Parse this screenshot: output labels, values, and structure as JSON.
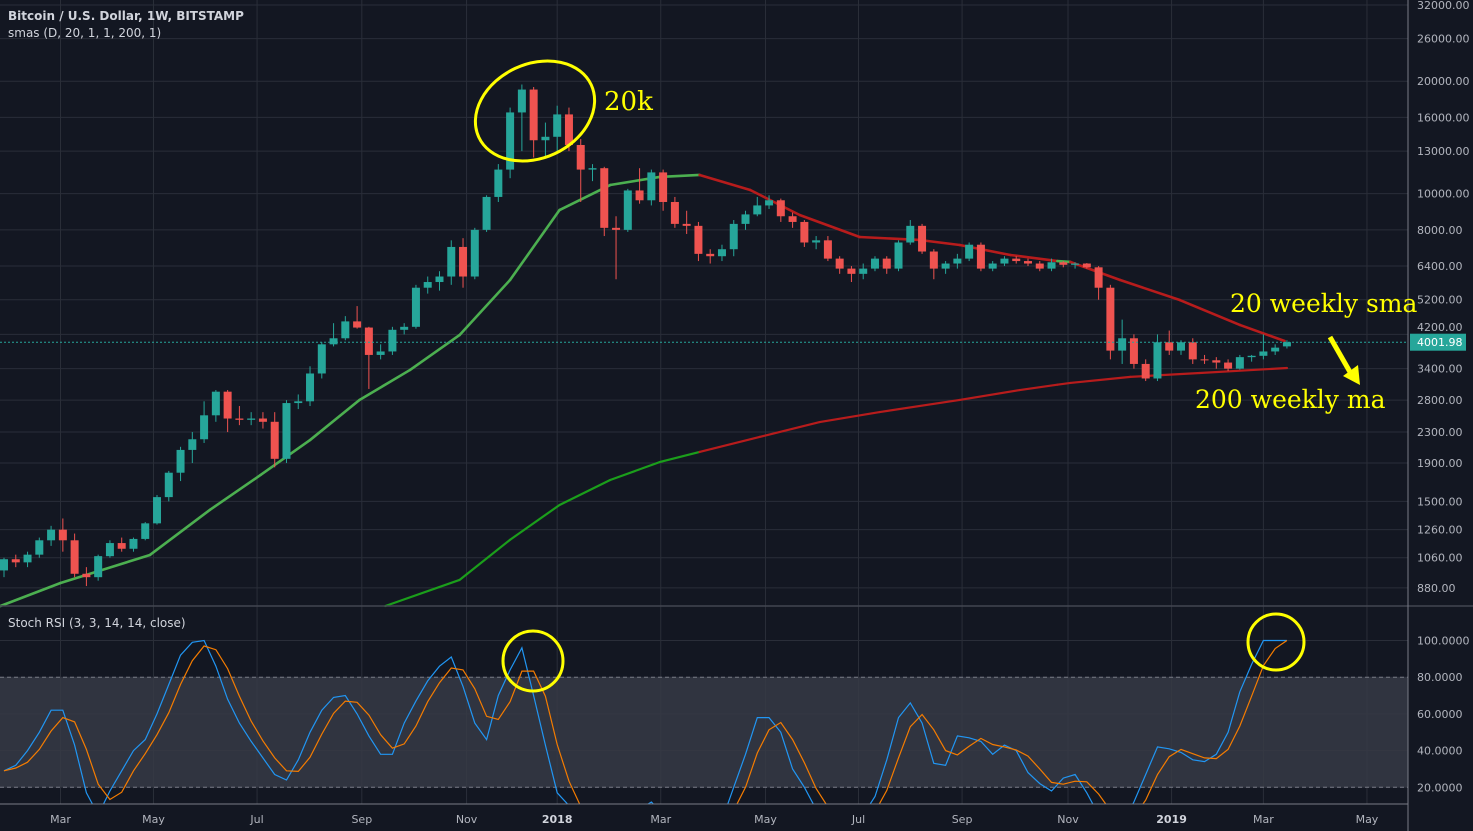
{
  "header": {
    "title": "Bitcoin / U.S. Dollar, 1W, BITSTAMP",
    "study": "smas (D, 20, 1, 1, 200, 1)",
    "oscillator": "Stoch RSI (3, 3, 14, 14, close)"
  },
  "colors": {
    "background": "#131722",
    "up": "#26a69a",
    "down": "#ef5350",
    "ma_up": "#4caf50",
    "ma_down": "#b71c1c",
    "ma200_up": "#1b9e1b",
    "stoch_k": "#2196f3",
    "stoch_d": "#f57c00",
    "annotation": "#ffff00",
    "last_price_tag": "#26a69a"
  },
  "price_axis": {
    "labels": [
      "32000.00",
      "26000.00",
      "20000.00",
      "16000.00",
      "13000.00",
      "10000.00",
      "8000.00",
      "6400.00",
      "5200.00",
      "4200.00",
      "3400.00",
      "2800.00",
      "2300.00",
      "1900.00",
      "1500.00",
      "1260.00",
      "1060.00",
      "880.00"
    ],
    "last_price": "4001.98"
  },
  "stoch_axis": {
    "labels": [
      "100.0000",
      "80.0000",
      "60.0000",
      "40.0000",
      "20.0000"
    ]
  },
  "time_axis": {
    "labels": [
      {
        "text": "Mar",
        "week": 4.8,
        "bold": false
      },
      {
        "text": "May",
        "week": 12.7,
        "bold": false
      },
      {
        "text": "Jul",
        "week": 21.5,
        "bold": false
      },
      {
        "text": "Sep",
        "week": 30.4,
        "bold": false
      },
      {
        "text": "Nov",
        "week": 39.3,
        "bold": false
      },
      {
        "text": "2018",
        "week": 47,
        "bold": true
      },
      {
        "text": "Mar",
        "week": 55.8,
        "bold": false
      },
      {
        "text": "May",
        "week": 64.7,
        "bold": false
      },
      {
        "text": "Jul",
        "week": 72.6,
        "bold": false
      },
      {
        "text": "Sep",
        "week": 81.4,
        "bold": false
      },
      {
        "text": "Nov",
        "week": 90.4,
        "bold": false
      },
      {
        "text": "2019",
        "week": 99.2,
        "bold": true
      },
      {
        "text": "Mar",
        "week": 107,
        "bold": false
      },
      {
        "text": "May",
        "week": 115.8,
        "bold": false
      }
    ]
  },
  "annotations": {
    "peak_label": "20k",
    "sma20_label": "20 weekly sma",
    "ma200_label": "200 weekly ma"
  },
  "chart_data": {
    "type": "candlestick",
    "scale": "log",
    "ylim": [
      820,
      32000
    ],
    "candles_ohlc": [
      [
        980,
        1060,
        940,
        1050
      ],
      [
        1050,
        1080,
        1000,
        1030
      ],
      [
        1030,
        1100,
        1000,
        1080
      ],
      [
        1080,
        1200,
        1060,
        1180
      ],
      [
        1180,
        1290,
        1140,
        1260
      ],
      [
        1260,
        1350,
        1100,
        1180
      ],
      [
        1180,
        1230,
        940,
        960
      ],
      [
        960,
        1000,
        890,
        940
      ],
      [
        940,
        1080,
        920,
        1070
      ],
      [
        1070,
        1180,
        1060,
        1160
      ],
      [
        1160,
        1200,
        1100,
        1120
      ],
      [
        1120,
        1200,
        1100,
        1190
      ],
      [
        1190,
        1320,
        1180,
        1310
      ],
      [
        1310,
        1560,
        1300,
        1540
      ],
      [
        1540,
        1810,
        1500,
        1790
      ],
      [
        1790,
        2100,
        1700,
        2060
      ],
      [
        2060,
        2300,
        1900,
        2200
      ],
      [
        2200,
        2780,
        2150,
        2550
      ],
      [
        2550,
        2980,
        2450,
        2950
      ],
      [
        2950,
        2980,
        2300,
        2500
      ],
      [
        2500,
        2700,
        2400,
        2480
      ],
      [
        2480,
        2600,
        2400,
        2500
      ],
      [
        2500,
        2600,
        2350,
        2450
      ],
      [
        2450,
        2600,
        1850,
        1950
      ],
      [
        1950,
        2800,
        1900,
        2750
      ],
      [
        2750,
        2900,
        2650,
        2780
      ],
      [
        2780,
        3450,
        2700,
        3300
      ],
      [
        3300,
        4000,
        3200,
        3950
      ],
      [
        3950,
        4500,
        3900,
        4100
      ],
      [
        4100,
        4700,
        4050,
        4550
      ],
      [
        4550,
        5000,
        4350,
        4380
      ],
      [
        4380,
        4400,
        3000,
        3700
      ],
      [
        3700,
        3950,
        3600,
        3780
      ],
      [
        3780,
        4400,
        3700,
        4320
      ],
      [
        4320,
        4500,
        4200,
        4400
      ],
      [
        4400,
        5700,
        4350,
        5600
      ],
      [
        5600,
        6000,
        5400,
        5800
      ],
      [
        5800,
        6200,
        5500,
        6000
      ],
      [
        6000,
        7500,
        5700,
        7200
      ],
      [
        7200,
        7600,
        5600,
        6000
      ],
      [
        6000,
        8100,
        5900,
        8000
      ],
      [
        8000,
        9900,
        7900,
        9800
      ],
      [
        9800,
        12000,
        9500,
        11600
      ],
      [
        11600,
        17000,
        11000,
        16500
      ],
      [
        16500,
        19600,
        13000,
        19000
      ],
      [
        19000,
        19300,
        12500,
        13900
      ],
      [
        13900,
        15500,
        12500,
        14200
      ],
      [
        14200,
        17200,
        13000,
        16300
      ],
      [
        16300,
        17000,
        13000,
        13500
      ],
      [
        13500,
        14000,
        9500,
        11600
      ],
      [
        11600,
        12000,
        10800,
        11700
      ],
      [
        11700,
        11800,
        7700,
        8100
      ],
      [
        8100,
        8700,
        5900,
        8000
      ],
      [
        8000,
        10300,
        7900,
        10200
      ],
      [
        10200,
        11700,
        9400,
        9600
      ],
      [
        9600,
        11600,
        9300,
        11400
      ],
      [
        11400,
        11600,
        9000,
        9500
      ],
      [
        9500,
        9800,
        8100,
        8300
      ],
      [
        8300,
        9000,
        7800,
        8200
      ],
      [
        8200,
        8400,
        6600,
        6900
      ],
      [
        6900,
        7100,
        6500,
        6800
      ],
      [
        6800,
        7300,
        6600,
        7100
      ],
      [
        7100,
        8500,
        6800,
        8300
      ],
      [
        8300,
        9000,
        8000,
        8800
      ],
      [
        8800,
        9800,
        8700,
        9300
      ],
      [
        9300,
        9900,
        9100,
        9600
      ],
      [
        9600,
        9700,
        8400,
        8700
      ],
      [
        8700,
        8900,
        8100,
        8400
      ],
      [
        8400,
        8500,
        7200,
        7400
      ],
      [
        7400,
        7700,
        7100,
        7500
      ],
      [
        7500,
        7700,
        6600,
        6700
      ],
      [
        6700,
        6800,
        6100,
        6300
      ],
      [
        6300,
        6400,
        5800,
        6100
      ],
      [
        6100,
        6500,
        5900,
        6300
      ],
      [
        6300,
        6800,
        6200,
        6700
      ],
      [
        6700,
        6800,
        6100,
        6300
      ],
      [
        6300,
        7500,
        6200,
        7400
      ],
      [
        7400,
        8500,
        7300,
        8200
      ],
      [
        8200,
        8300,
        6900,
        7000
      ],
      [
        7000,
        7100,
        5900,
        6300
      ],
      [
        6300,
        6600,
        6100,
        6500
      ],
      [
        6500,
        6900,
        6300,
        6700
      ],
      [
        6700,
        7400,
        6600,
        7300
      ],
      [
        7300,
        7400,
        6200,
        6300
      ],
      [
        6300,
        6600,
        6200,
        6500
      ],
      [
        6500,
        6800,
        6400,
        6700
      ],
      [
        6700,
        6800,
        6500,
        6600
      ],
      [
        6600,
        6700,
        6400,
        6500
      ],
      [
        6500,
        6600,
        6200,
        6300
      ],
      [
        6300,
        6700,
        6200,
        6550
      ],
      [
        6550,
        6600,
        6350,
        6450
      ],
      [
        6450,
        6550,
        6300,
        6500
      ],
      [
        6500,
        6520,
        6300,
        6350
      ],
      [
        6350,
        6400,
        5200,
        5600
      ],
      [
        5600,
        5700,
        3600,
        3800
      ],
      [
        3800,
        4600,
        3500,
        4100
      ],
      [
        4100,
        4200,
        3400,
        3500
      ],
      [
        3500,
        3600,
        3150,
        3200
      ],
      [
        3200,
        4200,
        3150,
        4000
      ],
      [
        4000,
        4300,
        3700,
        3800
      ],
      [
        3800,
        4050,
        3700,
        4000
      ],
      [
        4000,
        4100,
        3500,
        3600
      ],
      [
        3600,
        3700,
        3500,
        3580
      ],
      [
        3580,
        3650,
        3400,
        3530
      ],
      [
        3530,
        3600,
        3350,
        3400
      ],
      [
        3400,
        3700,
        3380,
        3650
      ],
      [
        3650,
        3700,
        3550,
        3680
      ],
      [
        3680,
        4200,
        3600,
        3780
      ],
      [
        3780,
        3950,
        3700,
        3870
      ],
      [
        3900,
        4050,
        3850,
        4001.98
      ]
    ],
    "sma20": {
      "points": [
        [
          -0.3,
          787
        ],
        [
          4.8,
          907
        ],
        [
          12.4,
          1078
        ],
        [
          17.5,
          1424
        ],
        [
          21.8,
          1765
        ],
        [
          26,
          2189
        ],
        [
          30.2,
          2803
        ],
        [
          34.5,
          3373
        ],
        [
          38.7,
          4182
        ],
        [
          43,
          5876
        ],
        [
          47.2,
          9040
        ],
        [
          51.5,
          10547
        ],
        [
          55.7,
          11085
        ],
        [
          59.1,
          11222
        ],
        [
          63.4,
          10228
        ],
        [
          67.6,
          8767
        ],
        [
          72.7,
          7655
        ],
        [
          77.8,
          7516
        ],
        [
          81.2,
          7286
        ],
        [
          85.5,
          6851
        ],
        [
          89.5,
          6600
        ],
        [
          90.6,
          6563
        ],
        [
          94.8,
          5876
        ],
        [
          99.9,
          5190
        ],
        [
          105,
          4451
        ],
        [
          108.8,
          4032
        ]
      ],
      "up_ranges": [
        [
          -1,
          59.1
        ],
        [
          88.5,
          90.6
        ]
      ]
    },
    "ma200": {
      "points": [
        [
          32.4,
          787
        ],
        [
          38.7,
          924
        ],
        [
          43,
          1184
        ],
        [
          47.2,
          1467
        ],
        [
          51.5,
          1711
        ],
        [
          55.7,
          1911
        ],
        [
          59.1,
          2034
        ],
        [
          64.2,
          2232
        ],
        [
          69.3,
          2446
        ],
        [
          74.4,
          2602
        ],
        [
          81.2,
          2803
        ],
        [
          86.3,
          2980
        ],
        [
          89.5,
          3080
        ],
        [
          90.6,
          3113
        ],
        [
          95.7,
          3232
        ],
        [
          101.6,
          3310
        ],
        [
          109,
          3413
        ]
      ],
      "up_ranges": [
        [
          30,
          59.1
        ],
        [
          88.5,
          89.6
        ]
      ]
    },
    "stoch_rsi": {
      "ylim": [
        0,
        100
      ],
      "band": [
        20,
        80
      ],
      "k": [
        29,
        32,
        40,
        50,
        62,
        62,
        43,
        17,
        5,
        18,
        29,
        40,
        46,
        60,
        76,
        92,
        99,
        100,
        86,
        68,
        55,
        45,
        36,
        27,
        24,
        35,
        50,
        62,
        69,
        70,
        60,
        48,
        38,
        38,
        55,
        67,
        78,
        86,
        91,
        75,
        55,
        46,
        70,
        84,
        96,
        70,
        43,
        17,
        10,
        2,
        0,
        0,
        0,
        0,
        8,
        12,
        5,
        0,
        0,
        0,
        0,
        2,
        20,
        38,
        58,
        58,
        50,
        30,
        20,
        8,
        0,
        0,
        0,
        5,
        15,
        35,
        58,
        66,
        55,
        33,
        32,
        48,
        47,
        45,
        38,
        43,
        40,
        28,
        22,
        18,
        25,
        27,
        17,
        5,
        0,
        0,
        12,
        27,
        42,
        41,
        39,
        35,
        34,
        38,
        50,
        72,
        87,
        100,
        100,
        100
      ],
      "d_smoothing": 3
    }
  }
}
